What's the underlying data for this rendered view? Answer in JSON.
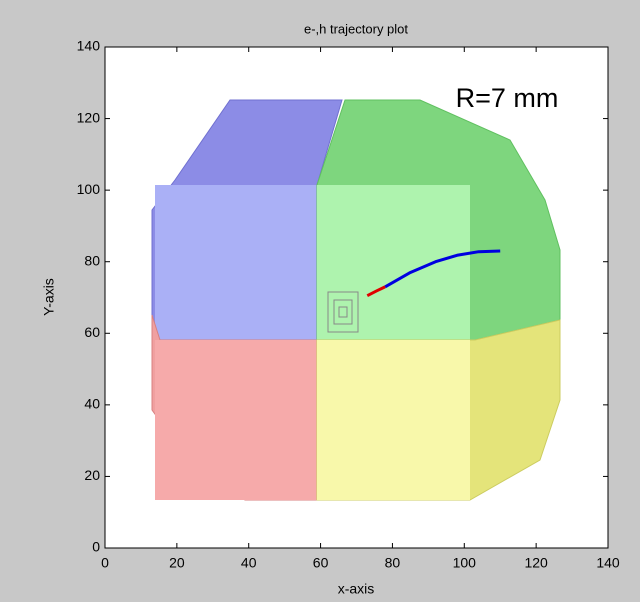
{
  "chart_data": {
    "type": "line",
    "title": "e-,h trajectory plot",
    "xlabel": "x-axis",
    "ylabel": "Y-axis",
    "annotation": "R=7 mm",
    "series": [
      {
        "color": "#e00000",
        "x": [
          73,
          75.5,
          78
        ],
        "values": [
          70.5,
          71.8,
          73
        ]
      },
      {
        "color": "#0000e0",
        "x": [
          78,
          85,
          92,
          98,
          104,
          110
        ],
        "values": [
          73,
          77,
          80,
          81.8,
          82.8,
          83
        ]
      }
    ],
    "xlim": [
      0,
      140
    ],
    "ylim": [
      0,
      140
    ],
    "xticks": [
      0,
      20,
      40,
      60,
      80,
      100,
      120,
      140
    ],
    "yticks": [
      0,
      20,
      40,
      60,
      80,
      100,
      120,
      140
    ]
  }
}
